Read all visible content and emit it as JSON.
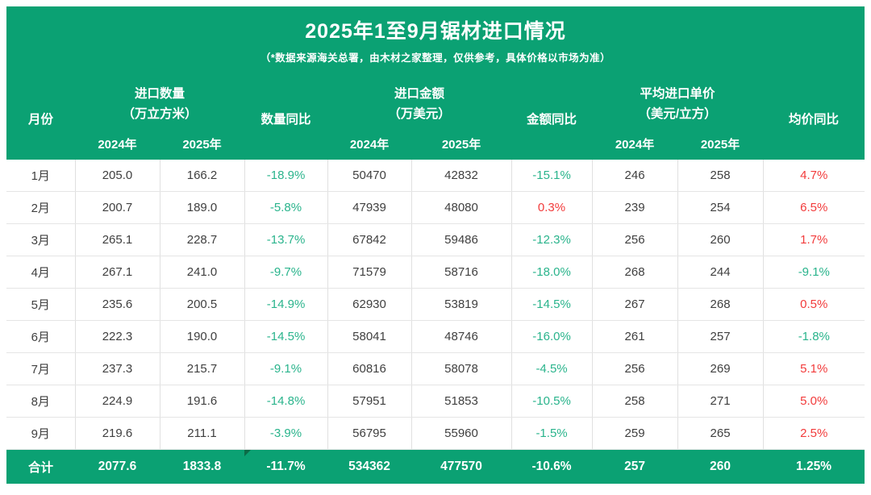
{
  "title": "2025年1至9月锯材进口情况",
  "subtitle": "（*数据来源海关总署，由木材之家整理，仅供参考，具体价格以市场为准）",
  "colors": {
    "header_green": "#0ba173",
    "yoy_negative_green": "#2ab48c",
    "yoy_positive_red": "#f23b3b",
    "body_text": "#3f3f3f",
    "corner_flag_green": "#0c6b47"
  },
  "header": {
    "month_label": "月份",
    "groups": [
      {
        "title": "进口数量",
        "unit": "（万立方米）",
        "years": [
          "2024年",
          "2025年"
        ],
        "yoy_label": "数量同比"
      },
      {
        "title": "进口金额",
        "unit": "（万美元）",
        "years": [
          "2024年",
          "2025年"
        ],
        "yoy_label": "金额同比"
      },
      {
        "title": "平均进口单价",
        "unit": "（美元/立方）",
        "years": [
          "2024年",
          "2025年"
        ],
        "yoy_label": "均价同比"
      }
    ]
  },
  "chart_data": {
    "type": "table",
    "title": "2025年1至9月锯材进口情况",
    "columns": [
      "月份",
      "进口数量2024年(万立方米)",
      "进口数量2025年(万立方米)",
      "数量同比",
      "进口金额2024年(万美元)",
      "进口金额2025年(万美元)",
      "金额同比",
      "平均进口单价2024年(美元/立方)",
      "平均进口单价2025年(美元/立方)",
      "均价同比"
    ],
    "rows": [
      {
        "month": "1月",
        "cells": [
          "205.0",
          "166.2",
          "-18.9%",
          "50470",
          "42832",
          "-15.1%",
          "246",
          "258",
          "4.7%"
        ]
      },
      {
        "month": "2月",
        "cells": [
          "200.7",
          "189.0",
          "-5.8%",
          "47939",
          "48080",
          "0.3%",
          "239",
          "254",
          "6.5%"
        ]
      },
      {
        "month": "3月",
        "cells": [
          "265.1",
          "228.7",
          "-13.7%",
          "67842",
          "59486",
          "-12.3%",
          "256",
          "260",
          "1.7%"
        ]
      },
      {
        "month": "4月",
        "cells": [
          "267.1",
          "241.0",
          "-9.7%",
          "71579",
          "58716",
          "-18.0%",
          "268",
          "244",
          "-9.1%"
        ]
      },
      {
        "month": "5月",
        "cells": [
          "235.6",
          "200.5",
          "-14.9%",
          "62930",
          "53819",
          "-14.5%",
          "267",
          "268",
          "0.5%"
        ]
      },
      {
        "month": "6月",
        "cells": [
          "222.3",
          "190.0",
          "-14.5%",
          "58041",
          "48746",
          "-16.0%",
          "261",
          "257",
          "-1.8%"
        ]
      },
      {
        "month": "7月",
        "cells": [
          "237.3",
          "215.7",
          "-9.1%",
          "60816",
          "58078",
          "-4.5%",
          "256",
          "269",
          "5.1%"
        ]
      },
      {
        "month": "8月",
        "cells": [
          "224.9",
          "191.6",
          "-14.8%",
          "57951",
          "51853",
          "-10.5%",
          "258",
          "271",
          "5.0%"
        ]
      },
      {
        "month": "9月",
        "cells": [
          "219.6",
          "211.1",
          "-3.9%",
          "56795",
          "55960",
          "-1.5%",
          "259",
          "265",
          "2.5%"
        ]
      }
    ],
    "total": {
      "label": "合计",
      "cells": [
        "2077.6",
        "1833.8",
        "-11.7%",
        "534362",
        "477570",
        "-10.6%",
        "257",
        "260",
        "1.25%"
      ]
    },
    "yoy_column_indexes": [
      2,
      5,
      8
    ]
  }
}
